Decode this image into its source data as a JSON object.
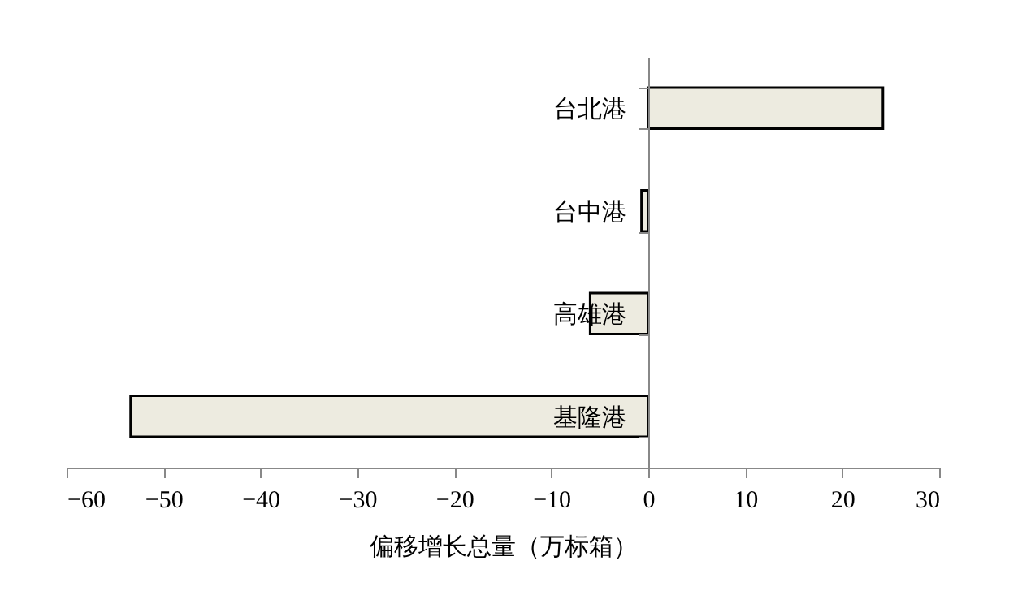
{
  "chart_data": {
    "type": "bar",
    "orientation": "horizontal",
    "categories": [
      "台北港",
      "台中港",
      "高雄港",
      "基隆港"
    ],
    "values": [
      24.2,
      -0.7,
      -6.0,
      -53.4
    ],
    "color": "#edebe0",
    "xlim": [
      -60,
      30
    ],
    "xticks": [
      -60,
      -50,
      -40,
      -30,
      -20,
      -10,
      0,
      10,
      20,
      30
    ],
    "xlabel": "偏移增长总量（万标箱）",
    "grid": false
  }
}
